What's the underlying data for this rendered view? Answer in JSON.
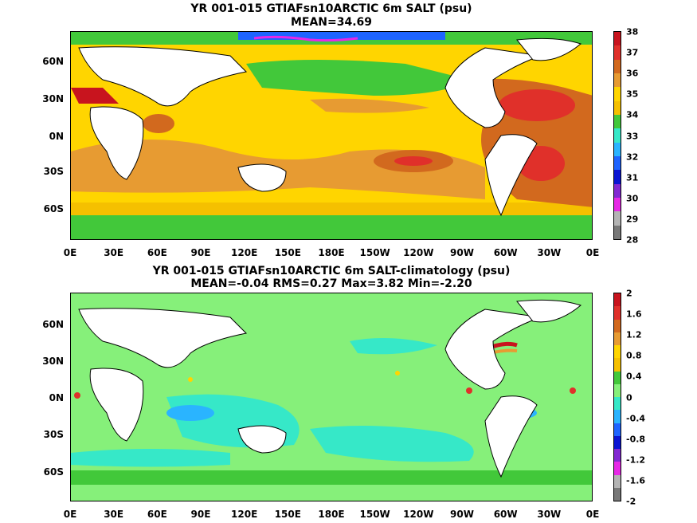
{
  "panels": [
    {
      "title": "YR 001-015 GTIAFsn10ARCTIC 6m SALT (psu)",
      "subtitle": "MEAN=34.69",
      "colorbar": {
        "labels": [
          "38",
          "37",
          "36",
          "35",
          "34",
          "33",
          "32",
          "31",
          "30",
          "29",
          "28"
        ],
        "colors": [
          "#c8141e",
          "#e0302a",
          "#d2691e",
          "#e79b32",
          "#ffd500",
          "#f5c000",
          "#42c83a",
          "#36e8c8",
          "#2ab4ff",
          "#1e64ff",
          "#0a14d2",
          "#8228d2",
          "#e628e6",
          "#b4b4b4",
          "#787878"
        ]
      }
    },
    {
      "title": "YR 001-015 GTIAFsn10ARCTIC 6m SALT-climatology (psu)",
      "subtitle": "MEAN=-0.04   RMS=0.27   Max=3.82   Min=-2.20",
      "colorbar": {
        "labels": [
          "2",
          "1.6",
          "1.2",
          "0.8",
          "0.4",
          "0",
          "-0.4",
          "-0.8",
          "-1.2",
          "-1.6",
          "-2"
        ],
        "colors": [
          "#c8141e",
          "#e0302a",
          "#d2691e",
          "#e79b32",
          "#ffd500",
          "#f5c000",
          "#42c83a",
          "#86f07a",
          "#36e8c8",
          "#2ab4ff",
          "#1e64ff",
          "#0a14d2",
          "#8228d2",
          "#e628e6",
          "#b4b4b4",
          "#787878"
        ]
      }
    }
  ],
  "lat_labels": [
    "60N",
    "30N",
    "0N",
    "30S",
    "60S"
  ],
  "lon_labels": [
    "0E",
    "30E",
    "60E",
    "90E",
    "120E",
    "150E",
    "180E",
    "150W",
    "120W",
    "90W",
    "60W",
    "30W",
    "0E"
  ]
}
